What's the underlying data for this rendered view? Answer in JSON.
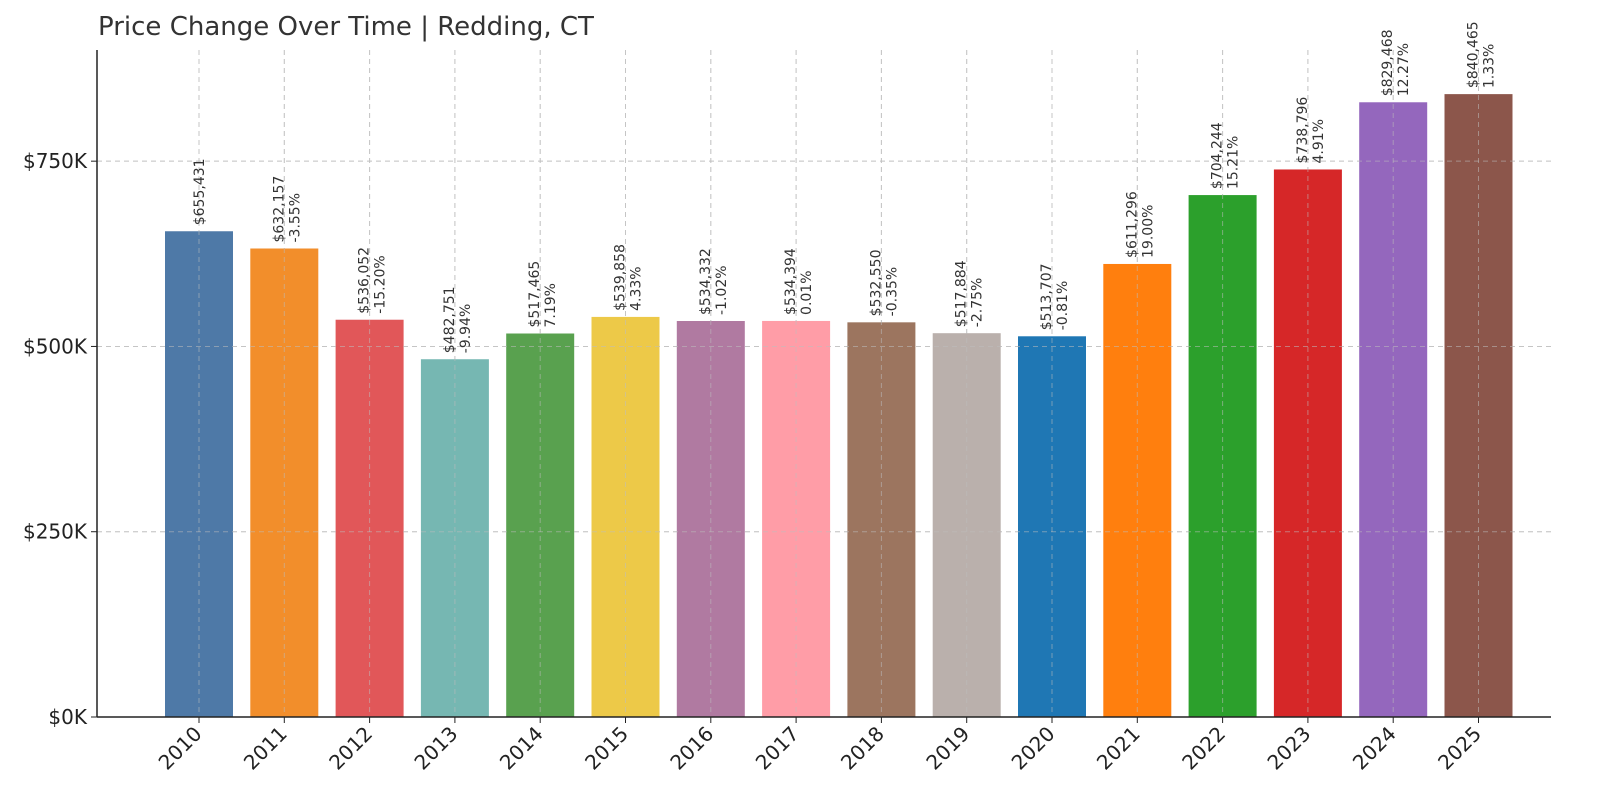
{
  "chart_data": {
    "type": "bar",
    "title": "Price Change Over Time | Redding, CT",
    "xlabel": "",
    "ylabel": "",
    "ylim": [
      0,
      900000
    ],
    "yticks": [
      0,
      250000,
      500000,
      750000
    ],
    "ytick_labels": [
      "$0K",
      "$250K",
      "$500K",
      "$750K"
    ],
    "grid": true,
    "categories": [
      "2010",
      "2011",
      "2012",
      "2013",
      "2014",
      "2015",
      "2016",
      "2017",
      "2018",
      "2019",
      "2020",
      "2021",
      "2022",
      "2023",
      "2024",
      "2025"
    ],
    "values": [
      655431,
      632157,
      536052,
      482751,
      517465,
      539858,
      534332,
      534394,
      532550,
      517884,
      513707,
      611296,
      704244,
      738796,
      829468,
      840465
    ],
    "value_labels": [
      "$655,431",
      "$632,157",
      "$536,052",
      "$482,751",
      "$517,465",
      "$539,858",
      "$534,332",
      "$534,394",
      "$532,550",
      "$517,884",
      "$513,707",
      "$611,296",
      "$704,244",
      "$738,796",
      "$829,468",
      "$840,465"
    ],
    "change_labels": [
      "",
      "-3.55%",
      "-15.20%",
      "-9.94%",
      "7.19%",
      "4.33%",
      "-1.02%",
      "0.01%",
      "-0.35%",
      "-2.75%",
      "-0.81%",
      "19.00%",
      "15.21%",
      "4.91%",
      "12.27%",
      "1.33%"
    ],
    "colors": [
      "#4e79a7",
      "#f28e2b",
      "#e15759",
      "#76b7b2",
      "#59a14f",
      "#edc948",
      "#b07aa1",
      "#ff9da7",
      "#9c755f",
      "#bab0ac",
      "#1f77b4",
      "#ff7f0e",
      "#2ca02c",
      "#d62728",
      "#9467bd",
      "#8c564b"
    ]
  }
}
